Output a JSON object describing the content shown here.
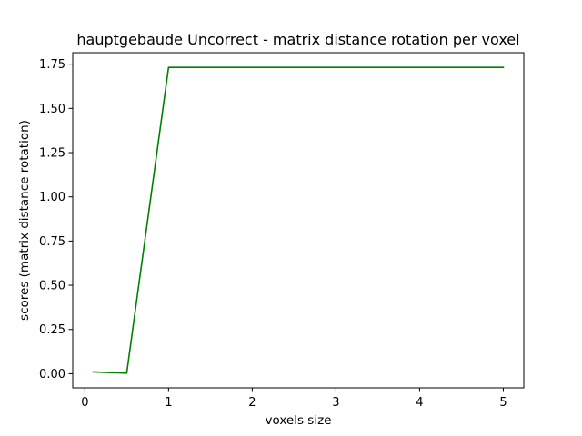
{
  "chart_data": {
    "type": "line",
    "title": "hauptgebaude Uncorrect - matrix distance rotation per voxel",
    "xlabel": "voxels size",
    "ylabel": "scores (matrix distance rotation)",
    "xlim": [
      -0.145,
      5.245
    ],
    "ylim": [
      -0.08,
      1.815
    ],
    "x_ticks": [
      0,
      1,
      2,
      3,
      4,
      5
    ],
    "x_tick_labels": [
      "0",
      "1",
      "2",
      "3",
      "4",
      "5"
    ],
    "y_ticks": [
      0.0,
      0.25,
      0.5,
      0.75,
      1.0,
      1.25,
      1.5,
      1.75
    ],
    "y_tick_labels": [
      "0.00",
      "0.25",
      "0.50",
      "0.75",
      "1.00",
      "1.25",
      "1.50",
      "1.75"
    ],
    "grid": false,
    "series": [
      {
        "color": "#008000",
        "x": [
          0.1,
          0.5,
          1,
          1.5,
          2,
          2.5,
          3,
          3.5,
          4,
          4.5,
          5
        ],
        "values": [
          0.01,
          0.003,
          1.732,
          1.732,
          1.732,
          1.732,
          1.732,
          1.732,
          1.732,
          1.732,
          1.732
        ]
      }
    ]
  }
}
